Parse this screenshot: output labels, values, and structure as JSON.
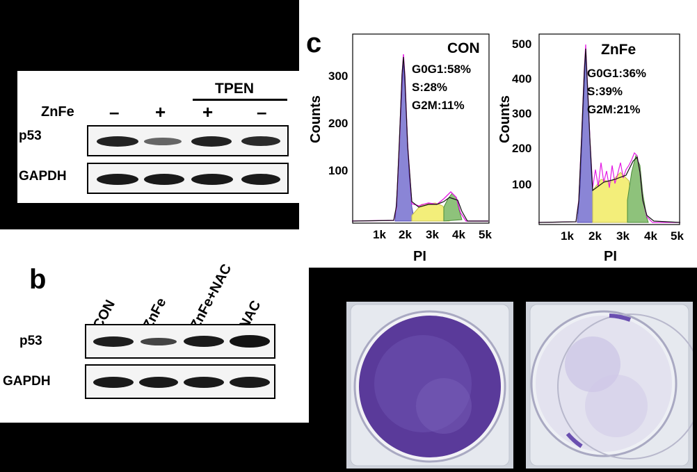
{
  "panel_a": {
    "treatment_header": "TPEN",
    "row_label": "ZnFe",
    "signs": [
      "–",
      "+",
      "+",
      "–"
    ],
    "blots": [
      {
        "label": "p53",
        "intensities": [
          0.85,
          0.45,
          0.85,
          0.8
        ]
      },
      {
        "label": "GAPDH",
        "intensities": [
          0.9,
          0.9,
          0.9,
          0.9
        ]
      }
    ]
  },
  "panel_b": {
    "letter": "b",
    "lanes": [
      "CON",
      "ZnFe",
      "ZnFe+NAC",
      "NAC"
    ],
    "blots": [
      {
        "label": "p53",
        "intensities": [
          0.85,
          0.5,
          0.9,
          0.95
        ]
      },
      {
        "label": "GAPDH",
        "intensities": [
          0.9,
          0.9,
          0.9,
          0.9
        ]
      }
    ]
  },
  "panel_c": {
    "letter": "c",
    "histograms": [
      {
        "title": "CON",
        "stats": [
          "G0G1:58%",
          "S:28%",
          "G2M:11%"
        ],
        "ylabel": "Counts",
        "xlabel": "PI",
        "yticks": [
          "300",
          "200",
          "100"
        ],
        "xticks": [
          "1k",
          "2k",
          "3k",
          "4k",
          "5k"
        ]
      },
      {
        "title": "ZnFe",
        "stats": [
          "G0G1:36%",
          "S:39%",
          "G2M:21%"
        ],
        "ylabel": "Counts",
        "xlabel": "PI",
        "yticks": [
          "500",
          "400",
          "300",
          "200",
          "100"
        ],
        "xticks": [
          "1k",
          "2k",
          "3k",
          "4k",
          "5k"
        ]
      }
    ]
  },
  "panel_d": {
    "wells": [
      {
        "stain_density": "high",
        "color": "#5a3a9a"
      },
      {
        "stain_density": "low",
        "color": "#6a4fb0"
      }
    ]
  }
}
